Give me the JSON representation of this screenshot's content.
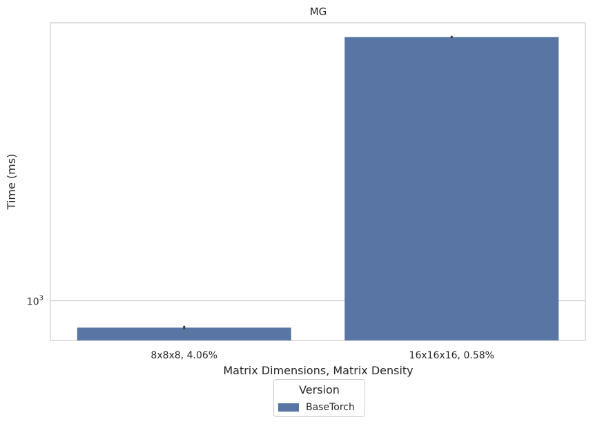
{
  "chart_data": {
    "type": "bar",
    "title": "MG",
    "xlabel": "Matrix Dimensions, Matrix Density",
    "ylabel": "Time (ms)",
    "yscale": "log",
    "ylim": [
      870,
      2650
    ],
    "categories": [
      "8x8x8, 4.06%",
      "16x16x16, 0.58%"
    ],
    "series": [
      {
        "name": "BaseTorch",
        "values": [
          910,
          2520
        ],
        "error": [
          [
            905,
            916
          ],
          [
            2512,
            2532
          ]
        ]
      }
    ],
    "y_ticks": [
      {
        "value": 1000,
        "base": "10",
        "exp": "3"
      }
    ],
    "grid": true,
    "legend": {
      "title": "Version",
      "placement": "bottom-center"
    },
    "colors": {
      "bar": "#5975a4",
      "error": "#3d3d3d",
      "grid": "#cccccc",
      "frame": "#cccccc"
    }
  }
}
